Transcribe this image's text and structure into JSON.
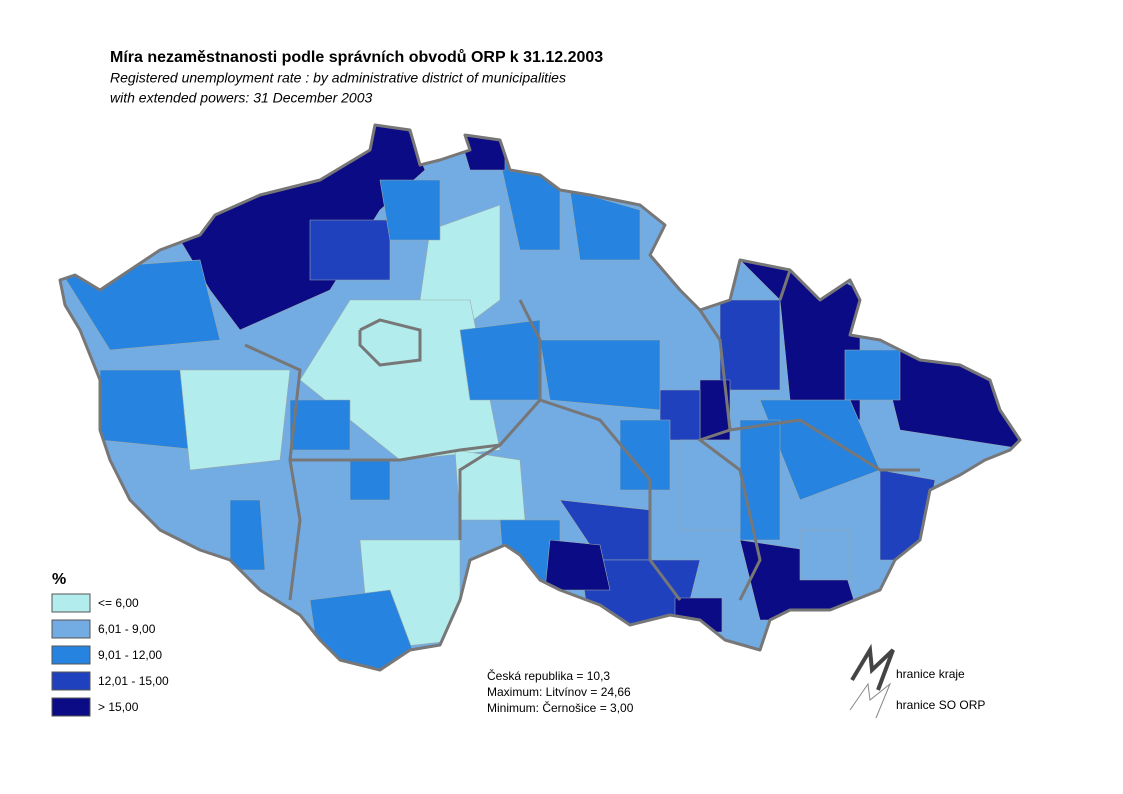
{
  "header": {
    "title": "Míra nezaměstnanosti podle správních obvodů ORP  k 31.12.2003",
    "subtitle": [
      "Registered unemployment rate : by administrative district of municipalities",
      "with extended powers: 31 December 2003"
    ]
  },
  "legend": {
    "title": "%",
    "items": [
      {
        "label": "<= 6,00",
        "color": "#b3ecec"
      },
      {
        "label": "6,01 - 9,00",
        "color": "#73abe3"
      },
      {
        "label": "9,01 - 12,00",
        "color": "#2683e0"
      },
      {
        "label": "12,01 - 15,00",
        "color": "#1f41bd"
      },
      {
        "label": "> 15,00",
        "color": "#0b0b85"
      }
    ]
  },
  "stats": [
    "Česká republika = 10,3",
    "Maximum: Litvínov = 24,66",
    "Minimum: Černošice = 3,00"
  ],
  "boundaries": [
    "hranice kraje",
    "hranice SO ORP"
  ]
}
